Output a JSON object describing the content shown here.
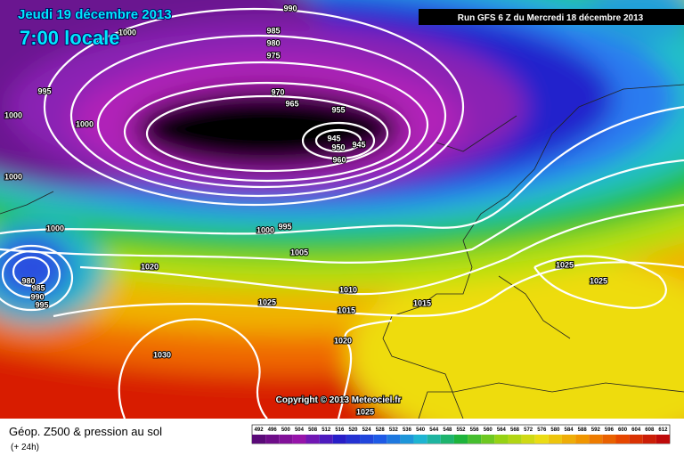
{
  "header": {
    "date": "Jeudi 19 décembre 2013",
    "time": "7:00 locale",
    "run": "Run GFS 6 Z du Mercredi 18 décembre 2013"
  },
  "map": {
    "isobar_labels": [
      990,
      1000,
      985,
      980,
      975,
      995,
      1000,
      1000,
      970,
      965,
      955,
      945,
      950,
      945,
      960,
      1000,
      1000,
      1000,
      995,
      1005,
      980,
      985,
      990,
      995,
      1020,
      1010,
      1025,
      1015,
      1015,
      1025,
      1025,
      1020,
      1030,
      1025
    ],
    "copyright": "Copyright © 2013 Meteociel.fr"
  },
  "footer": {
    "title": "Géop. Z500 & pression au sol",
    "lead": "(+ 24h)",
    "scale_levels": [
      492,
      496,
      500,
      504,
      508,
      512,
      516,
      520,
      524,
      528,
      532,
      536,
      540,
      544,
      548,
      552,
      556,
      560,
      564,
      568,
      572,
      576,
      580,
      584,
      588,
      592,
      596,
      600,
      604,
      608,
      612
    ]
  }
}
